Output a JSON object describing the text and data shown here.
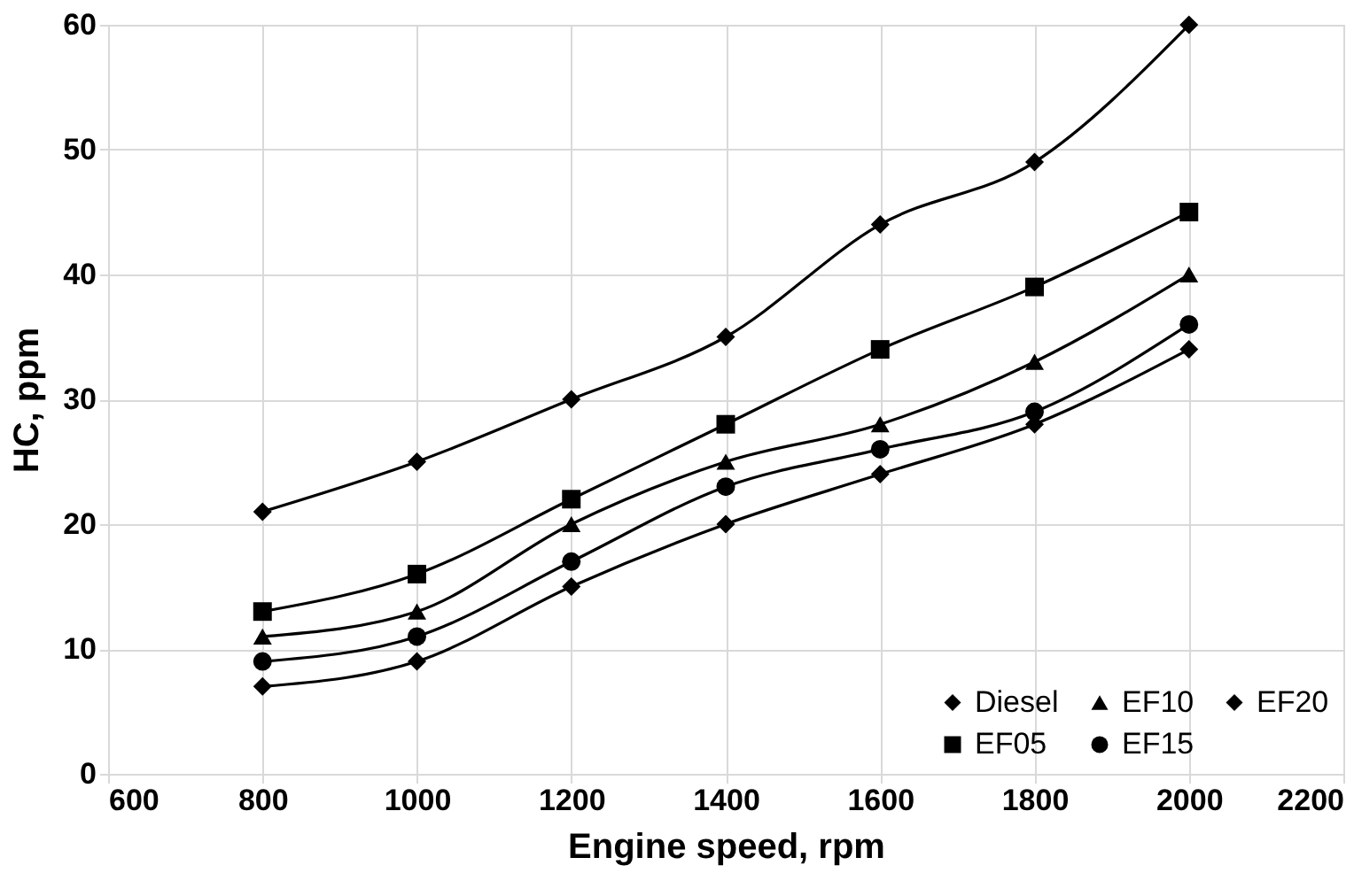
{
  "chart_data": {
    "type": "line",
    "xlabel": "Engine speed, rpm",
    "ylabel": "HC,  ppm",
    "x": [
      800,
      1000,
      1200,
      1400,
      1600,
      1800,
      2000
    ],
    "series": [
      {
        "name": "Diesel",
        "color": "#000000",
        "marker": "diamond",
        "values": [
          21,
          25,
          30,
          35,
          44,
          49,
          60
        ]
      },
      {
        "name": "EF05",
        "color": "#000000",
        "marker": "square",
        "values": [
          13,
          16,
          22,
          28,
          34,
          39,
          45
        ]
      },
      {
        "name": "EF10",
        "color": "#000000",
        "marker": "triangle",
        "values": [
          11,
          13,
          20,
          25,
          28,
          33,
          40
        ]
      },
      {
        "name": "EF15",
        "color": "#000000",
        "marker": "circle",
        "values": [
          9,
          11,
          17,
          23,
          26,
          29,
          36
        ]
      },
      {
        "name": "EF20",
        "color": "#000000",
        "marker": "diamond",
        "values": [
          7,
          9,
          15,
          20,
          24,
          28,
          34
        ]
      }
    ],
    "xlim": [
      600,
      2200
    ],
    "xticks": [
      600,
      800,
      1000,
      1200,
      1400,
      1600,
      1800,
      2000,
      2200
    ],
    "ylim": [
      0,
      60
    ],
    "yticks": [
      0,
      10,
      20,
      30,
      40,
      50,
      60
    ],
    "grid": true,
    "legend": "bottom right",
    "line_style": "solid"
  }
}
